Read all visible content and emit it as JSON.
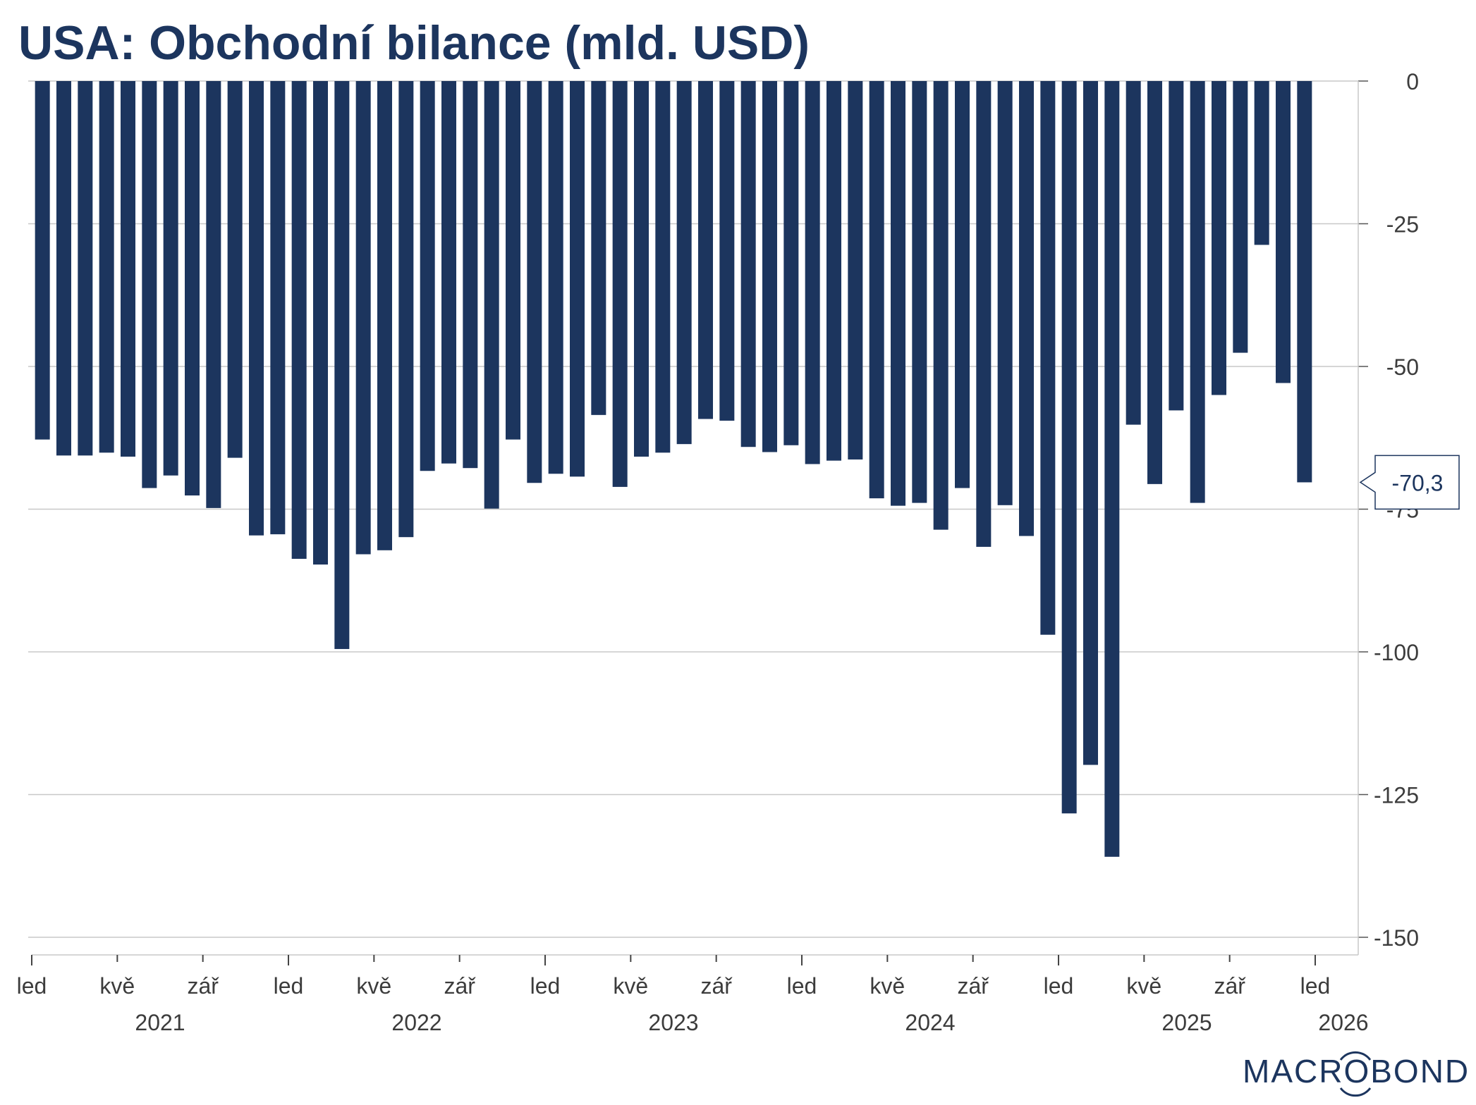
{
  "chart_data": {
    "type": "bar",
    "title": "USA: Obchodní bilance (mld. USD)",
    "xlabel": "",
    "ylabel": "",
    "ylim": [
      -150,
      0
    ],
    "yticks": [
      "0",
      "-25",
      "-50",
      "-75",
      "-100",
      "-125",
      "-150"
    ],
    "ytick_values": [
      0,
      -25,
      -50,
      -75,
      -100,
      -125,
      -150
    ],
    "grid": true,
    "y_axis_side": "right",
    "x_start": "2021-01",
    "x_month_labels": [
      "led",
      "kvě",
      "zář",
      "led",
      "kvě",
      "zář",
      "led",
      "kvě",
      "zář",
      "led",
      "kvě",
      "zář",
      "led",
      "kvě",
      "zář",
      "led"
    ],
    "x_month_label_offsets": [
      0,
      4,
      8,
      12,
      16,
      20,
      24,
      28,
      32,
      36,
      40,
      44,
      48,
      52,
      56,
      60
    ],
    "x_year_labels": [
      "2021",
      "2022",
      "2023",
      "2024",
      "2025",
      "2026"
    ],
    "categories": [
      "2021-01",
      "2021-02",
      "2021-03",
      "2021-04",
      "2021-05",
      "2021-06",
      "2021-07",
      "2021-08",
      "2021-09",
      "2021-10",
      "2021-11",
      "2021-12",
      "2022-01",
      "2022-02",
      "2022-03",
      "2022-04",
      "2022-05",
      "2022-06",
      "2022-07",
      "2022-08",
      "2022-09",
      "2022-10",
      "2022-11",
      "2022-12",
      "2023-01",
      "2023-02",
      "2023-03",
      "2023-04",
      "2023-05",
      "2023-06",
      "2023-07",
      "2023-08",
      "2023-09",
      "2023-10",
      "2023-11",
      "2023-12",
      "2024-01",
      "2024-02",
      "2024-03",
      "2024-04",
      "2024-05",
      "2024-06",
      "2024-07",
      "2024-08",
      "2024-09",
      "2024-10",
      "2024-11",
      "2024-12",
      "2025-01",
      "2025-02",
      "2025-03",
      "2025-04",
      "2025-05",
      "2025-06",
      "2025-07",
      "2025-08",
      "2025-09",
      "2025-10",
      "2025-11",
      "2025-12"
    ],
    "values": [
      -62.8,
      -65.6,
      -65.6,
      -65.1,
      -65.8,
      -71.3,
      -69.1,
      -72.6,
      -74.8,
      -66.0,
      -79.6,
      -79.4,
      -83.7,
      -84.7,
      -99.5,
      -82.9,
      -82.2,
      -79.9,
      -68.3,
      -67.0,
      -67.8,
      -74.9,
      -62.8,
      -70.4,
      -68.8,
      -69.3,
      -58.5,
      -71.1,
      -65.8,
      -65.1,
      -63.6,
      -59.2,
      -59.5,
      -64.1,
      -65.0,
      -63.8,
      -67.1,
      -66.5,
      -66.3,
      -73.1,
      -74.4,
      -73.9,
      -78.6,
      -71.3,
      -81.6,
      -74.3,
      -79.7,
      -97.0,
      -128.3,
      -119.8,
      -135.9,
      -60.2,
      -70.6,
      -57.7,
      -73.9,
      -55.0,
      -47.6,
      -28.7,
      -52.9,
      -70.3
    ],
    "last_value_label": "-70,3",
    "bar_color": "#1c355e",
    "label_color": "#1c355e"
  },
  "logo": "MACROBOND"
}
